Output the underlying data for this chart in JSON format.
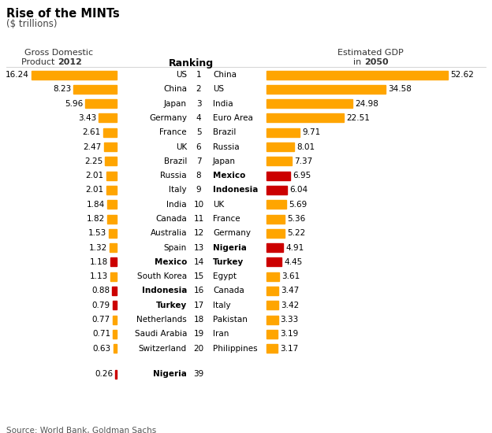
{
  "title": "Rise of the MINTs",
  "subtitle": "($ trillions)",
  "left_header_line1": "Gross Domestic",
  "left_header_line2_normal": "Product ",
  "left_header_line2_bold": "2012",
  "right_header_line1": "Estimated GDP",
  "right_header_line2_normal": "in ",
  "right_header_line2_bold": "2050",
  "center_header": "Ranking",
  "gdp2012": [
    16.24,
    8.23,
    5.96,
    3.43,
    2.61,
    2.47,
    2.25,
    2.01,
    2.01,
    1.84,
    1.82,
    1.53,
    1.32,
    1.18,
    1.13,
    0.88,
    0.79,
    0.77,
    0.71,
    0.63
  ],
  "gdp2012_labels": [
    "US",
    "China",
    "Japan",
    "Germany",
    "France",
    "UK",
    "Brazil",
    "Russia",
    "Italy",
    "India",
    "Canada",
    "Australia",
    "Spain",
    "Mexico",
    "South Korea",
    "Indonesia",
    "Turkey",
    "Netherlands",
    "Saudi Arabia",
    "Switzerland"
  ],
  "gdp2012_bold": [
    false,
    false,
    false,
    false,
    false,
    false,
    false,
    false,
    false,
    false,
    false,
    false,
    false,
    true,
    false,
    true,
    true,
    false,
    false,
    false
  ],
  "gdp2012_colors": [
    "#FFA500",
    "#FFA500",
    "#FFA500",
    "#FFA500",
    "#FFA500",
    "#FFA500",
    "#FFA500",
    "#FFA500",
    "#FFA500",
    "#FFA500",
    "#FFA500",
    "#FFA500",
    "#FFA500",
    "#CC0000",
    "#FFA500",
    "#CC0000",
    "#CC0000",
    "#FFA500",
    "#FFA500",
    "#FFA500"
  ],
  "gdp2050": [
    52.62,
    34.58,
    24.98,
    22.51,
    9.71,
    8.01,
    7.37,
    6.95,
    6.04,
    5.69,
    5.36,
    5.22,
    4.91,
    4.45,
    3.61,
    3.47,
    3.42,
    3.33,
    3.19,
    3.17
  ],
  "gdp2050_labels": [
    "China",
    "US",
    "India",
    "Euro Area",
    "Brazil",
    "Russia",
    "Japan",
    "Mexico",
    "Indonesia",
    "UK",
    "France",
    "Germany",
    "Nigeria",
    "Turkey",
    "Egypt",
    "Canada",
    "Italy",
    "Pakistan",
    "Iran",
    "Philippines"
  ],
  "gdp2050_bold": [
    false,
    false,
    false,
    false,
    false,
    false,
    false,
    true,
    true,
    false,
    false,
    false,
    true,
    true,
    false,
    false,
    false,
    false,
    false,
    false
  ],
  "gdp2050_colors": [
    "#FFA500",
    "#FFA500",
    "#FFA500",
    "#FFA500",
    "#FFA500",
    "#FFA500",
    "#FFA500",
    "#CC0000",
    "#CC0000",
    "#FFA500",
    "#FFA500",
    "#FFA500",
    "#CC0000",
    "#CC0000",
    "#FFA500",
    "#FFA500",
    "#FFA500",
    "#FFA500",
    "#FFA500",
    "#FFA500"
  ],
  "rankings": [
    1,
    2,
    3,
    4,
    5,
    6,
    7,
    8,
    9,
    10,
    11,
    12,
    13,
    14,
    15,
    16,
    17,
    18,
    19,
    20
  ],
  "extra_value": 0.26,
  "extra_label": "Nigeria",
  "extra_rank": 39,
  "source": "Source: World Bank, Goldman Sachs",
  "bar_color_orange": "#FFA500",
  "bar_color_red": "#CC0000",
  "bg_color": "#FFFFFF"
}
